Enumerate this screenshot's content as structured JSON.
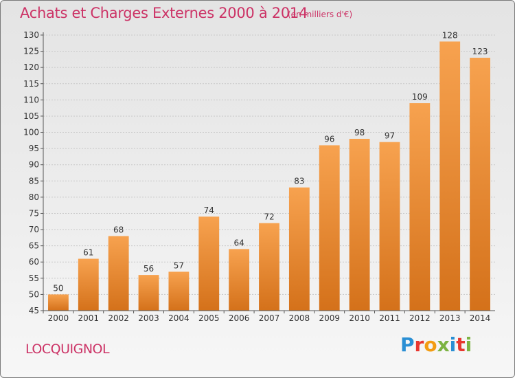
{
  "header": {
    "title": "Achats et Charges Externes 2000 à 2014",
    "subtitle": "(en milliers d'€)"
  },
  "footer": {
    "commune": "LOCQUIGNOL",
    "logo_letters": [
      "P",
      "r",
      "o",
      "x",
      "i",
      "t",
      "i"
    ]
  },
  "colors": {
    "accent": "#cc3366",
    "bar_top": "#f7a24f",
    "bar_bottom": "#d4711a"
  },
  "chart_data": {
    "type": "bar",
    "title": "Achats et Charges Externes 2000 à 2014",
    "subtitle": "(en milliers d'€)",
    "categories": [
      "2000",
      "2001",
      "2002",
      "2003",
      "2004",
      "2005",
      "2006",
      "2007",
      "2008",
      "2009",
      "2010",
      "2011",
      "2012",
      "2013",
      "2014"
    ],
    "values": [
      50,
      61,
      68,
      56,
      57,
      74,
      64,
      72,
      83,
      96,
      98,
      97,
      109,
      128,
      123
    ],
    "ylim": [
      45,
      130
    ],
    "yticks": [
      45,
      50,
      55,
      60,
      65,
      70,
      75,
      80,
      85,
      90,
      95,
      100,
      105,
      110,
      115,
      120,
      125,
      130
    ],
    "grid": true,
    "xlabel": "",
    "ylabel": ""
  }
}
